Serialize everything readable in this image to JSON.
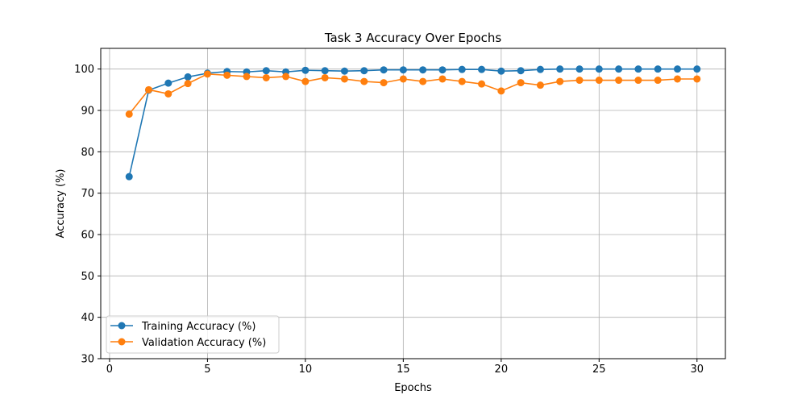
{
  "chart_data": {
    "type": "line",
    "title": "Task 3 Accuracy Over Epochs",
    "xlabel": "Epochs",
    "ylabel": "Accuracy (%)",
    "xlim": [
      -0.45,
      31.45
    ],
    "ylim": [
      30,
      105
    ],
    "xticks": [
      0,
      5,
      10,
      15,
      20,
      25,
      30
    ],
    "yticks": [
      30,
      40,
      50,
      60,
      70,
      80,
      90,
      100
    ],
    "grid": true,
    "legend_position": "lower-left",
    "x": [
      1,
      2,
      3,
      4,
      5,
      6,
      7,
      8,
      9,
      10,
      11,
      12,
      13,
      14,
      15,
      16,
      17,
      18,
      19,
      20,
      21,
      22,
      23,
      24,
      25,
      26,
      27,
      28,
      29,
      30
    ],
    "series": [
      {
        "name": "Training Accuracy (%)",
        "color": "#1f77b4",
        "values": [
          74.0,
          94.9,
          96.6,
          98.1,
          99.0,
          99.4,
          99.3,
          99.6,
          99.3,
          99.7,
          99.6,
          99.5,
          99.6,
          99.8,
          99.8,
          99.8,
          99.8,
          99.9,
          99.9,
          99.5,
          99.6,
          99.9,
          100.0,
          100.0,
          100.0,
          100.0,
          100.0,
          100.0,
          100.0,
          100.0
        ]
      },
      {
        "name": "Validation Accuracy (%)",
        "color": "#ff7f0e",
        "values": [
          89.1,
          95.0,
          94.0,
          96.5,
          98.8,
          98.5,
          98.2,
          97.9,
          98.2,
          97.0,
          97.9,
          97.6,
          97.0,
          96.7,
          97.6,
          97.0,
          97.6,
          97.0,
          96.4,
          94.7,
          96.7,
          96.1,
          97.0,
          97.3,
          97.3,
          97.3,
          97.3,
          97.3,
          97.6,
          97.6
        ]
      }
    ]
  }
}
